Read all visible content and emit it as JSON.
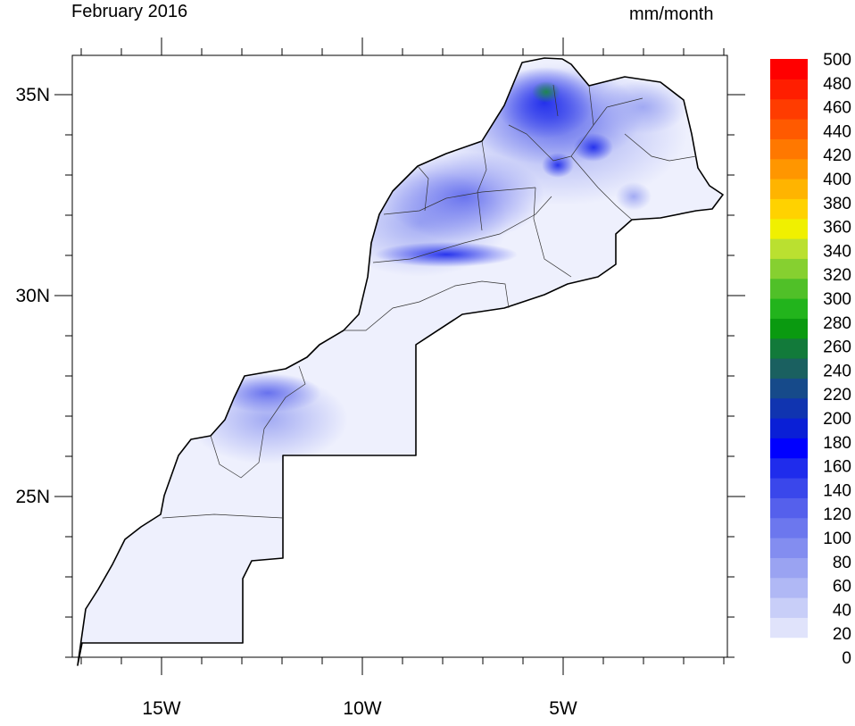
{
  "header": {
    "title_left": "February 2016",
    "title_right": "mm/month"
  },
  "map": {
    "lat_labels": [
      "35N",
      "30N",
      "25N"
    ],
    "lon_labels": [
      "15W",
      "10W",
      "5W"
    ],
    "lat_ticks": [
      35,
      30,
      25
    ],
    "lon_ticks": [
      -15,
      -10,
      -5
    ],
    "extent": {
      "lon_min": -17,
      "lon_max": -1,
      "lat_min": 21,
      "lat_max": 36
    }
  },
  "colorbar": {
    "labels": [
      "500",
      "480",
      "460",
      "440",
      "420",
      "400",
      "380",
      "360",
      "340",
      "320",
      "300",
      "280",
      "260",
      "240",
      "220",
      "200",
      "180",
      "160",
      "140",
      "120",
      "100",
      "80",
      "60",
      "40",
      "20",
      "0"
    ],
    "colors": [
      "#ffffff",
      "#e0e3fb",
      "#c8cef8",
      "#b0b8f5",
      "#9aa3f2",
      "#838df0",
      "#6c77ee",
      "#5560ec",
      "#3a47eb",
      "#1f2cec",
      "#0000ff",
      "#0a1fd6",
      "#1034b0",
      "#164a8a",
      "#1a6060",
      "#127a3a",
      "#0a9a10",
      "#22b41c",
      "#50c028",
      "#86d030",
      "#bae030",
      "#f0f000",
      "#ffd200",
      "#ffb400",
      "#ff9600",
      "#ff7800",
      "#ff5a00",
      "#ff3c00",
      "#ff1e00",
      "#ff0000"
    ]
  }
}
